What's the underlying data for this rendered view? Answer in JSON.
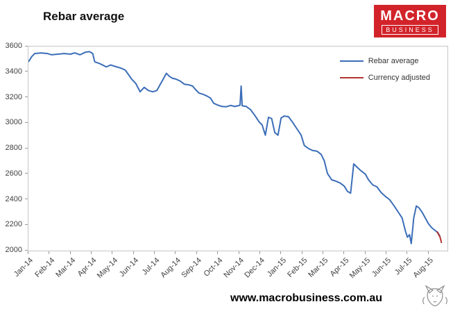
{
  "header": {
    "title": "Rebar average",
    "logo": {
      "line1": "MACRO",
      "line2": "BUSINESS",
      "bg_color": "#d2232a"
    }
  },
  "footer": {
    "url": "www.macrobusiness.com.au"
  },
  "chart_data": {
    "type": "line",
    "title": "Rebar average",
    "xlabel": "",
    "ylabel": "",
    "ylim": [
      2000,
      3600
    ],
    "y_ticks": [
      2000,
      2200,
      2400,
      2600,
      2800,
      3000,
      3200,
      3400,
      3600
    ],
    "xlim": [
      0,
      19.9
    ],
    "x_labels": [
      "Jan-14",
      "Feb-14",
      "Mar-14",
      "Apr-14",
      "May-14",
      "Jun-14",
      "Jul-14",
      "Aug-14",
      "Sep-14",
      "Oct-14",
      "Nov-14",
      "Dec-14",
      "Jan-15",
      "Feb-15",
      "Mar-15",
      "Apr-15",
      "May-15",
      "Jun-15",
      "Jul-15",
      "Aug-15"
    ],
    "grid": false,
    "legend_position": "top-right",
    "legend": [
      {
        "name": "Rebar average",
        "color": "#3b6db8"
      },
      {
        "name": "Currency adjusted",
        "color": "#b23230"
      }
    ],
    "series": [
      {
        "name": "Rebar average",
        "color": "#3b6db8",
        "points": [
          [
            0.0,
            3480
          ],
          [
            0.15,
            3520
          ],
          [
            0.3,
            3545
          ],
          [
            0.6,
            3550
          ],
          [
            0.9,
            3545
          ],
          [
            1.1,
            3535
          ],
          [
            1.4,
            3540
          ],
          [
            1.7,
            3545
          ],
          [
            2.0,
            3540
          ],
          [
            2.2,
            3550
          ],
          [
            2.45,
            3535
          ],
          [
            2.7,
            3555
          ],
          [
            2.9,
            3560
          ],
          [
            3.05,
            3545
          ],
          [
            3.15,
            3480
          ],
          [
            3.4,
            3465
          ],
          [
            3.7,
            3440
          ],
          [
            3.9,
            3455
          ],
          [
            4.1,
            3445
          ],
          [
            4.4,
            3430
          ],
          [
            4.6,
            3415
          ],
          [
            4.75,
            3380
          ],
          [
            4.9,
            3345
          ],
          [
            5.1,
            3310
          ],
          [
            5.3,
            3245
          ],
          [
            5.5,
            3280
          ],
          [
            5.7,
            3255
          ],
          [
            5.9,
            3245
          ],
          [
            6.1,
            3255
          ],
          [
            6.25,
            3300
          ],
          [
            6.4,
            3345
          ],
          [
            6.55,
            3390
          ],
          [
            6.7,
            3365
          ],
          [
            6.85,
            3350
          ],
          [
            7.0,
            3345
          ],
          [
            7.2,
            3330
          ],
          [
            7.4,
            3305
          ],
          [
            7.6,
            3300
          ],
          [
            7.8,
            3290
          ],
          [
            7.95,
            3260
          ],
          [
            8.1,
            3235
          ],
          [
            8.3,
            3225
          ],
          [
            8.5,
            3210
          ],
          [
            8.65,
            3195
          ],
          [
            8.8,
            3155
          ],
          [
            9.0,
            3140
          ],
          [
            9.2,
            3130
          ],
          [
            9.4,
            3128
          ],
          [
            9.6,
            3138
          ],
          [
            9.8,
            3130
          ],
          [
            9.95,
            3135
          ],
          [
            10.05,
            3140
          ],
          [
            10.1,
            3290
          ],
          [
            10.15,
            3135
          ],
          [
            10.35,
            3130
          ],
          [
            10.55,
            3105
          ],
          [
            10.75,
            3060
          ],
          [
            10.95,
            3010
          ],
          [
            11.1,
            2985
          ],
          [
            11.25,
            2905
          ],
          [
            11.4,
            3045
          ],
          [
            11.55,
            3035
          ],
          [
            11.7,
            2925
          ],
          [
            11.85,
            2905
          ],
          [
            12.0,
            3040
          ],
          [
            12.15,
            3055
          ],
          [
            12.35,
            3050
          ],
          [
            12.55,
            3005
          ],
          [
            12.75,
            2955
          ],
          [
            12.95,
            2905
          ],
          [
            13.1,
            2825
          ],
          [
            13.3,
            2800
          ],
          [
            13.5,
            2785
          ],
          [
            13.7,
            2780
          ],
          [
            13.9,
            2755
          ],
          [
            14.05,
            2705
          ],
          [
            14.2,
            2605
          ],
          [
            14.4,
            2555
          ],
          [
            14.6,
            2545
          ],
          [
            14.8,
            2530
          ],
          [
            15.0,
            2505
          ],
          [
            15.15,
            2465
          ],
          [
            15.3,
            2450
          ],
          [
            15.45,
            2680
          ],
          [
            15.6,
            2655
          ],
          [
            15.8,
            2625
          ],
          [
            16.0,
            2600
          ],
          [
            16.15,
            2555
          ],
          [
            16.35,
            2515
          ],
          [
            16.55,
            2500
          ],
          [
            16.75,
            2455
          ],
          [
            16.95,
            2425
          ],
          [
            17.15,
            2400
          ],
          [
            17.35,
            2355
          ],
          [
            17.55,
            2305
          ],
          [
            17.75,
            2255
          ],
          [
            17.9,
            2155
          ],
          [
            18.0,
            2105
          ],
          [
            18.1,
            2125
          ],
          [
            18.18,
            2055
          ],
          [
            18.3,
            2255
          ],
          [
            18.42,
            2350
          ],
          [
            18.55,
            2335
          ],
          [
            18.7,
            2300
          ],
          [
            18.85,
            2255
          ],
          [
            19.0,
            2210
          ],
          [
            19.15,
            2180
          ],
          [
            19.3,
            2160
          ],
          [
            19.45,
            2140
          ],
          [
            19.55,
            2110
          ]
        ]
      },
      {
        "name": "Currency adjusted",
        "color": "#b23230",
        "points": [
          [
            19.4,
            2150
          ],
          [
            19.55,
            2105
          ],
          [
            19.62,
            2060
          ]
        ]
      }
    ]
  }
}
